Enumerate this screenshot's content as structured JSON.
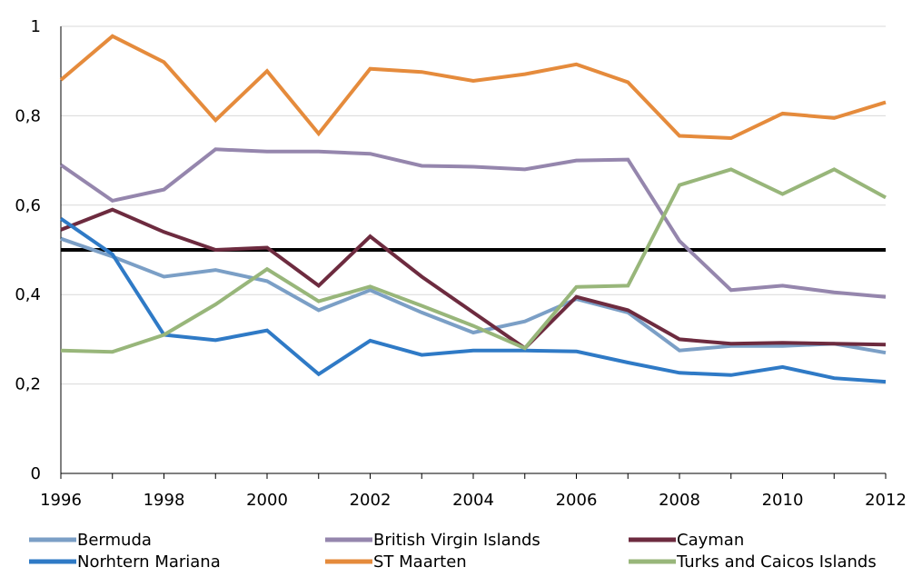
{
  "chart_data": {
    "type": "line",
    "title": "",
    "xlabel": "",
    "ylabel": "",
    "x": [
      1996,
      1997,
      1998,
      1999,
      2000,
      2001,
      2002,
      2003,
      2004,
      2005,
      2006,
      2007,
      2008,
      2009,
      2010,
      2011,
      2012
    ],
    "xlim": [
      1996,
      2012
    ],
    "ylim": [
      0,
      1
    ],
    "x_ticks": [
      "1996",
      "1998",
      "2000",
      "2002",
      "2004",
      "2006",
      "2008",
      "2010",
      "2012"
    ],
    "y_ticks": [
      "0",
      "0,2",
      "0,4",
      "0,6",
      "0,8",
      "1"
    ],
    "y_grid": true,
    "legend_position": "bottom",
    "reference_line": {
      "y": 0.5,
      "color": "#000000"
    },
    "series": [
      {
        "name": "Bermuda",
        "color": "#7b9fc6",
        "values": [
          0.525,
          0.485,
          0.44,
          0.455,
          0.43,
          0.365,
          0.41,
          0.36,
          0.315,
          0.34,
          0.39,
          0.36,
          0.275,
          0.285,
          0.285,
          0.29,
          0.27
        ]
      },
      {
        "name": "British Virgin Islands",
        "color": "#9586ad",
        "values": [
          0.69,
          0.61,
          0.635,
          0.725,
          0.72,
          0.72,
          0.715,
          0.688,
          0.686,
          0.68,
          0.7,
          0.702,
          0.52,
          0.41,
          0.42,
          0.405,
          0.395
        ]
      },
      {
        "name": "Cayman",
        "color": "#6d2b3f",
        "values": [
          0.545,
          0.59,
          0.54,
          0.5,
          0.505,
          0.42,
          0.53,
          0.44,
          0.36,
          0.28,
          0.395,
          0.365,
          0.3,
          0.29,
          0.292,
          0.29,
          0.288
        ]
      },
      {
        "name": "Norhtern Mariana",
        "color": "#2f7ac6",
        "values": [
          0.57,
          0.49,
          0.31,
          0.298,
          0.32,
          0.222,
          0.297,
          0.265,
          0.275,
          0.275,
          0.273,
          0.248,
          0.225,
          0.22,
          0.238,
          0.213,
          0.205
        ]
      },
      {
        "name": "ST Maarten",
        "color": "#e58b3c",
        "values": [
          0.88,
          0.978,
          0.92,
          0.79,
          0.9,
          0.76,
          0.905,
          0.898,
          0.878,
          0.893,
          0.915,
          0.875,
          0.755,
          0.75,
          0.805,
          0.795,
          0.83
        ]
      },
      {
        "name": "Turks and Caicos Islands",
        "color": "#98b67a",
        "values": [
          0.275,
          0.272,
          0.31,
          0.378,
          0.457,
          0.385,
          0.418,
          0.375,
          0.33,
          0.28,
          0.417,
          0.42,
          0.645,
          0.68,
          0.625,
          0.68,
          0.617
        ]
      }
    ]
  }
}
